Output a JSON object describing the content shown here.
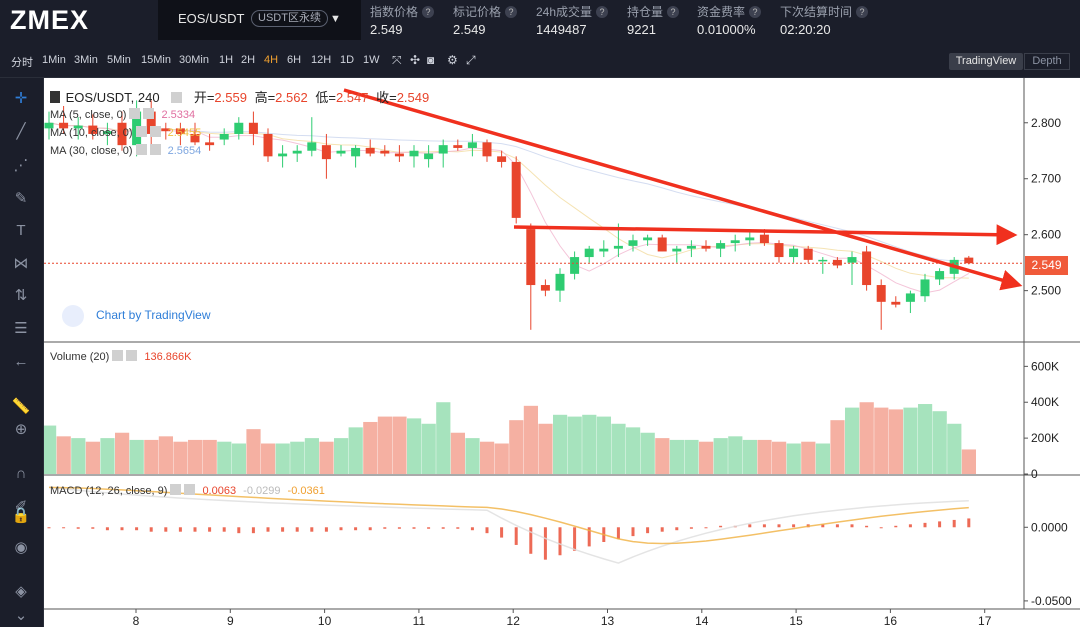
{
  "app": {
    "logo": "ZMEX"
  },
  "pair": {
    "name": "EOS/USDT",
    "badge": "USDT区永续"
  },
  "stats": [
    {
      "label": "指数价格",
      "value": "2.549"
    },
    {
      "label": "标记价格",
      "value": "2.549"
    },
    {
      "label": "24h成交量",
      "value": "1449487"
    },
    {
      "label": "持仓量",
      "value": "9221"
    },
    {
      "label": "资金费率",
      "value": "0.01000%"
    },
    {
      "label": "下次结算时间",
      "value": "02:20:20"
    }
  ],
  "timeframes": [
    "分时",
    "1Min",
    "3Min",
    "5Min",
    "15Min",
    "30Min",
    "1H",
    "2H",
    "4H",
    "6H",
    "12H",
    "1D",
    "1W"
  ],
  "active_timeframe": "4H",
  "view_toggle": {
    "tradingview": "TradingView",
    "depth": "Depth"
  },
  "legend": {
    "symbol": "EOS/USDT, 240",
    "open_label": "开=",
    "open": "2.559",
    "high_label": "高=",
    "high": "2.562",
    "low_label": "低=",
    "low": "2.547",
    "close_label": "收=",
    "close": "2.549",
    "ma5": "MA (5, close, 0)",
    "ma5_val": "2.5334",
    "ma10": "MA (10, close, 0)",
    "ma10_val": "2.5455",
    "ma30": "MA (30, close, 0)",
    "ma30_val": "2.5654",
    "volume": "Volume (20)",
    "volume_val": "136.866K",
    "macd": "MACD (12, 26, close, 9)",
    "macd_v1": "0.0063",
    "macd_v2": "-0.0299",
    "macd_v3": "-0.0361"
  },
  "watermark": "Chart by TradingView",
  "current_price": "2.549",
  "colors": {
    "up": "#2ecc71",
    "down": "#e8452c",
    "vol_up": "#a6e3bd",
    "vol_down": "#f5b0a2",
    "arrow": "#f0301e"
  },
  "chart_data": {
    "type": "candlestick",
    "price_axis": {
      "ticks": [
        "2.800",
        "2.700",
        "2.600",
        "2.500"
      ],
      "range": [
        2.41,
        2.88
      ]
    },
    "volume_axis": {
      "ticks": [
        "600K",
        "400K",
        "200K",
        "0"
      ],
      "range": [
        0,
        680000
      ]
    },
    "macd_axis": {
      "ticks": [
        "0.0000",
        "-0.0500"
      ],
      "range": [
        -0.0555,
        0.0355
      ]
    },
    "x_ticks": [
      "8",
      "9",
      "10",
      "11",
      "12",
      "13",
      "14",
      "15",
      "16",
      "17"
    ],
    "candles": [
      {
        "o": 2.79,
        "h": 2.82,
        "l": 2.77,
        "c": 2.8,
        "v": 270000
      },
      {
        "o": 2.8,
        "h": 2.83,
        "l": 2.78,
        "c": 2.79,
        "v": 210000
      },
      {
        "o": 2.79,
        "h": 2.81,
        "l": 2.77,
        "c": 2.795,
        "v": 200000
      },
      {
        "o": 2.795,
        "h": 2.815,
        "l": 2.77,
        "c": 2.78,
        "v": 180000
      },
      {
        "o": 2.78,
        "h": 2.8,
        "l": 2.76,
        "c": 2.785,
        "v": 200000
      },
      {
        "o": 2.8,
        "h": 2.82,
        "l": 2.75,
        "c": 2.76,
        "v": 230000
      },
      {
        "o": 2.76,
        "h": 2.84,
        "l": 2.74,
        "c": 2.82,
        "v": 190000
      },
      {
        "o": 2.82,
        "h": 2.84,
        "l": 2.76,
        "c": 2.78,
        "v": 190000
      },
      {
        "o": 2.79,
        "h": 2.8,
        "l": 2.77,
        "c": 2.785,
        "v": 210000
      },
      {
        "o": 2.79,
        "h": 2.8,
        "l": 2.76,
        "c": 2.78,
        "v": 180000
      },
      {
        "o": 2.78,
        "h": 2.8,
        "l": 2.76,
        "c": 2.765,
        "v": 190000
      },
      {
        "o": 2.765,
        "h": 2.78,
        "l": 2.75,
        "c": 2.76,
        "v": 190000
      },
      {
        "o": 2.77,
        "h": 2.79,
        "l": 2.76,
        "c": 2.78,
        "v": 180000
      },
      {
        "o": 2.78,
        "h": 2.81,
        "l": 2.77,
        "c": 2.8,
        "v": 170000
      },
      {
        "o": 2.8,
        "h": 2.82,
        "l": 2.76,
        "c": 2.78,
        "v": 250000
      },
      {
        "o": 2.78,
        "h": 2.79,
        "l": 2.73,
        "c": 2.74,
        "v": 170000
      },
      {
        "o": 2.74,
        "h": 2.76,
        "l": 2.72,
        "c": 2.745,
        "v": 170000
      },
      {
        "o": 2.745,
        "h": 2.76,
        "l": 2.73,
        "c": 2.75,
        "v": 180000
      },
      {
        "o": 2.75,
        "h": 2.81,
        "l": 2.74,
        "c": 2.765,
        "v": 200000
      },
      {
        "o": 2.76,
        "h": 2.78,
        "l": 2.7,
        "c": 2.735,
        "v": 180000
      },
      {
        "o": 2.745,
        "h": 2.76,
        "l": 2.74,
        "c": 2.75,
        "v": 200000
      },
      {
        "o": 2.74,
        "h": 2.76,
        "l": 2.72,
        "c": 2.755,
        "v": 260000
      },
      {
        "o": 2.755,
        "h": 2.77,
        "l": 2.74,
        "c": 2.745,
        "v": 290000
      },
      {
        "o": 2.75,
        "h": 2.76,
        "l": 2.74,
        "c": 2.745,
        "v": 320000
      },
      {
        "o": 2.745,
        "h": 2.76,
        "l": 2.73,
        "c": 2.74,
        "v": 320000
      },
      {
        "o": 2.74,
        "h": 2.76,
        "l": 2.72,
        "c": 2.75,
        "v": 310000
      },
      {
        "o": 2.735,
        "h": 2.76,
        "l": 2.72,
        "c": 2.745,
        "v": 280000
      },
      {
        "o": 2.745,
        "h": 2.77,
        "l": 2.72,
        "c": 2.76,
        "v": 400000
      },
      {
        "o": 2.76,
        "h": 2.77,
        "l": 2.75,
        "c": 2.755,
        "v": 230000
      },
      {
        "o": 2.755,
        "h": 2.78,
        "l": 2.74,
        "c": 2.765,
        "v": 200000
      },
      {
        "o": 2.765,
        "h": 2.77,
        "l": 2.73,
        "c": 2.74,
        "v": 180000
      },
      {
        "o": 2.74,
        "h": 2.75,
        "l": 2.72,
        "c": 2.73,
        "v": 170000
      },
      {
        "o": 2.73,
        "h": 2.74,
        "l": 2.62,
        "c": 2.63,
        "v": 300000
      },
      {
        "o": 2.61,
        "h": 2.62,
        "l": 2.43,
        "c": 2.51,
        "v": 380000
      },
      {
        "o": 2.51,
        "h": 2.52,
        "l": 2.49,
        "c": 2.5,
        "v": 280000
      },
      {
        "o": 2.5,
        "h": 2.54,
        "l": 2.48,
        "c": 2.53,
        "v": 330000
      },
      {
        "o": 2.53,
        "h": 2.57,
        "l": 2.52,
        "c": 2.56,
        "v": 320000
      },
      {
        "o": 2.56,
        "h": 2.58,
        "l": 2.55,
        "c": 2.575,
        "v": 330000
      },
      {
        "o": 2.57,
        "h": 2.59,
        "l": 2.56,
        "c": 2.575,
        "v": 320000
      },
      {
        "o": 2.575,
        "h": 2.62,
        "l": 2.56,
        "c": 2.58,
        "v": 280000
      },
      {
        "o": 2.58,
        "h": 2.6,
        "l": 2.57,
        "c": 2.59,
        "v": 260000
      },
      {
        "o": 2.59,
        "h": 2.6,
        "l": 2.58,
        "c": 2.595,
        "v": 230000
      },
      {
        "o": 2.595,
        "h": 2.6,
        "l": 2.57,
        "c": 2.57,
        "v": 200000
      },
      {
        "o": 2.57,
        "h": 2.58,
        "l": 2.55,
        "c": 2.575,
        "v": 190000
      },
      {
        "o": 2.575,
        "h": 2.59,
        "l": 2.56,
        "c": 2.58,
        "v": 190000
      },
      {
        "o": 2.58,
        "h": 2.59,
        "l": 2.57,
        "c": 2.575,
        "v": 180000
      },
      {
        "o": 2.575,
        "h": 2.59,
        "l": 2.56,
        "c": 2.585,
        "v": 200000
      },
      {
        "o": 2.585,
        "h": 2.6,
        "l": 2.57,
        "c": 2.59,
        "v": 210000
      },
      {
        "o": 2.59,
        "h": 2.61,
        "l": 2.58,
        "c": 2.595,
        "v": 190000
      },
      {
        "o": 2.6,
        "h": 2.61,
        "l": 2.58,
        "c": 2.585,
        "v": 190000
      },
      {
        "o": 2.585,
        "h": 2.59,
        "l": 2.55,
        "c": 2.56,
        "v": 180000
      },
      {
        "o": 2.56,
        "h": 2.58,
        "l": 2.55,
        "c": 2.575,
        "v": 170000
      },
      {
        "o": 2.575,
        "h": 2.58,
        "l": 2.55,
        "c": 2.555,
        "v": 180000
      },
      {
        "o": 2.555,
        "h": 2.56,
        "l": 2.53,
        "c": 2.555,
        "v": 170000
      },
      {
        "o": 2.555,
        "h": 2.56,
        "l": 2.54,
        "c": 2.545,
        "v": 300000
      },
      {
        "o": 2.55,
        "h": 2.57,
        "l": 2.51,
        "c": 2.56,
        "v": 370000
      },
      {
        "o": 2.57,
        "h": 2.58,
        "l": 2.5,
        "c": 2.51,
        "v": 400000
      },
      {
        "o": 2.51,
        "h": 2.52,
        "l": 2.43,
        "c": 2.48,
        "v": 370000
      },
      {
        "o": 2.48,
        "h": 2.49,
        "l": 2.47,
        "c": 2.475,
        "v": 360000
      },
      {
        "o": 2.48,
        "h": 2.5,
        "l": 2.46,
        "c": 2.495,
        "v": 370000
      },
      {
        "o": 2.49,
        "h": 2.53,
        "l": 2.48,
        "c": 2.52,
        "v": 390000
      },
      {
        "o": 2.52,
        "h": 2.54,
        "l": 2.51,
        "c": 2.535,
        "v": 350000
      },
      {
        "o": 2.53,
        "h": 2.56,
        "l": 2.52,
        "c": 2.555,
        "v": 280000
      },
      {
        "o": 2.559,
        "h": 2.562,
        "l": 2.547,
        "c": 2.549,
        "v": 136866
      }
    ],
    "macd_hist": [
      0.0,
      0.0,
      -0.001,
      -0.001,
      -0.002,
      -0.002,
      -0.002,
      -0.003,
      -0.003,
      -0.003,
      -0.003,
      -0.003,
      -0.003,
      -0.004,
      -0.004,
      -0.003,
      -0.003,
      -0.003,
      -0.003,
      -0.003,
      -0.002,
      -0.002,
      -0.002,
      -0.001,
      -0.001,
      -0.001,
      -0.001,
      -0.001,
      -0.001,
      -0.002,
      -0.004,
      -0.007,
      -0.012,
      -0.018,
      -0.022,
      -0.019,
      -0.016,
      -0.013,
      -0.01,
      -0.008,
      -0.006,
      -0.004,
      -0.003,
      -0.002,
      -0.001,
      0.0,
      0.001,
      0.001,
      0.002,
      0.002,
      0.002,
      0.002,
      0.002,
      0.002,
      0.002,
      0.002,
      0.001,
      0.0,
      0.001,
      0.002,
      0.003,
      0.004,
      0.005,
      0.006
    ]
  }
}
